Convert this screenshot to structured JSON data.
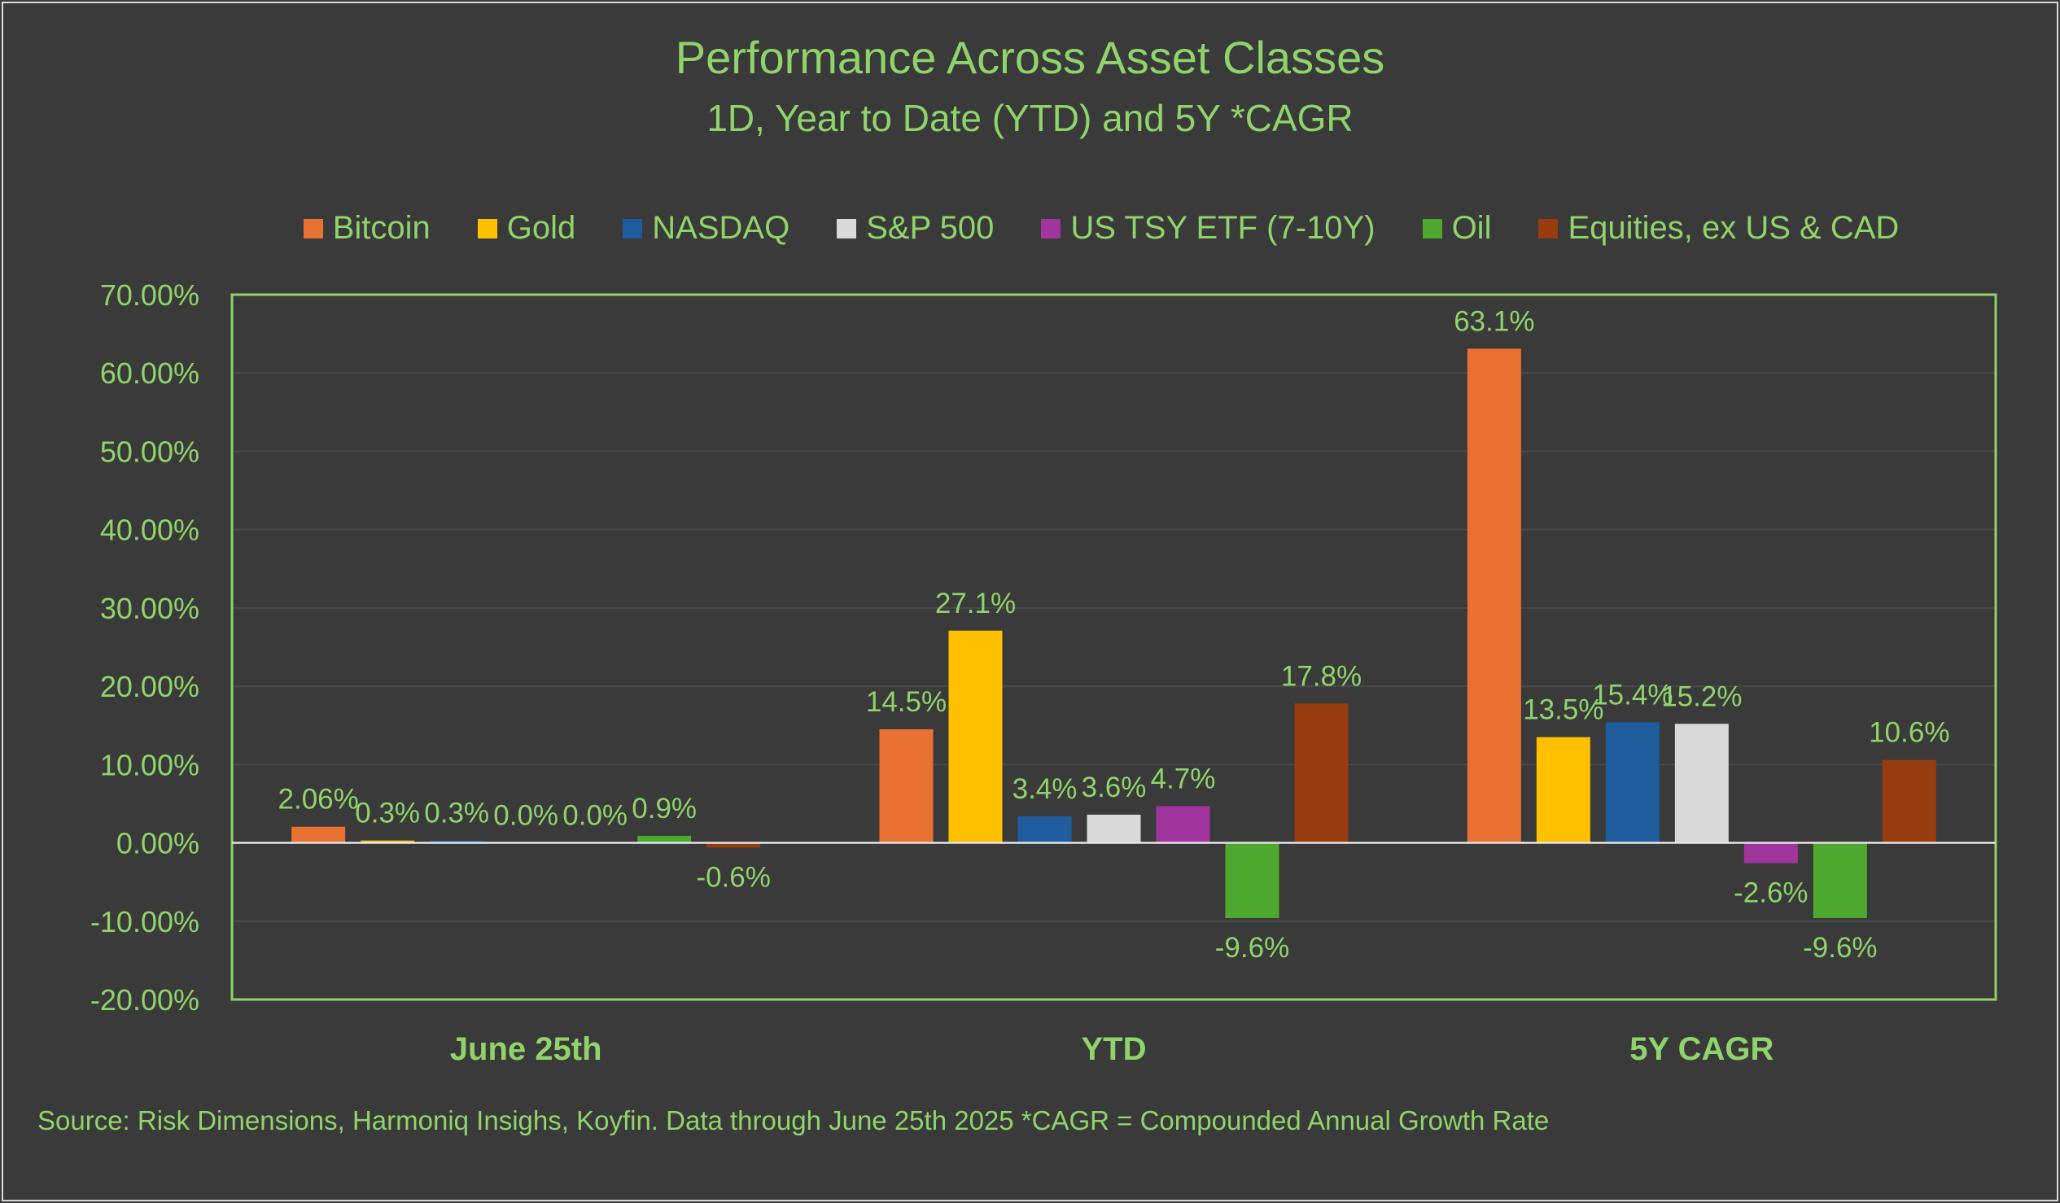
{
  "chart_data": {
    "type": "bar",
    "title": "Performance Across Asset Classes",
    "subtitle": "1D, Year to Date (YTD) and 5Y *CAGR",
    "categories": [
      "June 25th",
      "YTD",
      "5Y CAGR"
    ],
    "ylim": [
      -20,
      70
    ],
    "yticks": [
      "-20.00%",
      "-10.00%",
      "0.00%",
      "10.00%",
      "20.00%",
      "30.00%",
      "40.00%",
      "50.00%",
      "60.00%",
      "70.00%"
    ],
    "ytick_values": [
      -20,
      -10,
      0,
      10,
      20,
      30,
      40,
      50,
      60,
      70
    ],
    "legend_position": "top",
    "grid": true,
    "series": [
      {
        "name": "Bitcoin",
        "color": "#e97132",
        "values": [
          2.06,
          14.5,
          63.1
        ],
        "labels": [
          "2.06%",
          "14.5%",
          "63.1%"
        ]
      },
      {
        "name": "Gold",
        "color": "#ffc000",
        "values": [
          0.3,
          27.1,
          13.5
        ],
        "labels": [
          "0.3%",
          "27.1%",
          "13.5%"
        ]
      },
      {
        "name": "NASDAQ",
        "color": "#1f5c9e",
        "values": [
          0.3,
          3.4,
          15.4
        ],
        "labels": [
          "0.3%",
          "3.4%",
          "15.4%"
        ]
      },
      {
        "name": "S&P 500",
        "color": "#d9d9d9",
        "values": [
          0.0,
          3.6,
          15.2
        ],
        "labels": [
          "0.0%",
          "3.6%",
          "15.2%"
        ]
      },
      {
        "name": "US TSY ETF (7-10Y)",
        "color": "#a0359e",
        "values": [
          0.0,
          4.7,
          -2.6
        ],
        "labels": [
          "0.0%",
          "4.7%",
          "-2.6%"
        ]
      },
      {
        "name": "Oil",
        "color": "#4ea72e",
        "values": [
          0.9,
          -9.6,
          -9.6
        ],
        "labels": [
          "0.9%",
          "-9.6%",
          "-9.6%"
        ]
      },
      {
        "name": "Equities, ex US & CAD",
        "color": "#963c0e",
        "values": [
          -0.6,
          17.8,
          10.6
        ],
        "labels": [
          "-0.6%",
          "17.8%",
          "10.6%"
        ]
      }
    ],
    "source": "Source: Risk Dimensions, Harmoniq Insighs, Koyfin. Data through June 25th 2025  *CAGR = Compounded Annual Growth Rate"
  },
  "colors": {
    "background": "#3a3a3a",
    "text": "#8fd46a",
    "plot_border": "#8fd46a",
    "gridline": "#4a4a4a",
    "zero_line": "#e6e6e6"
  }
}
